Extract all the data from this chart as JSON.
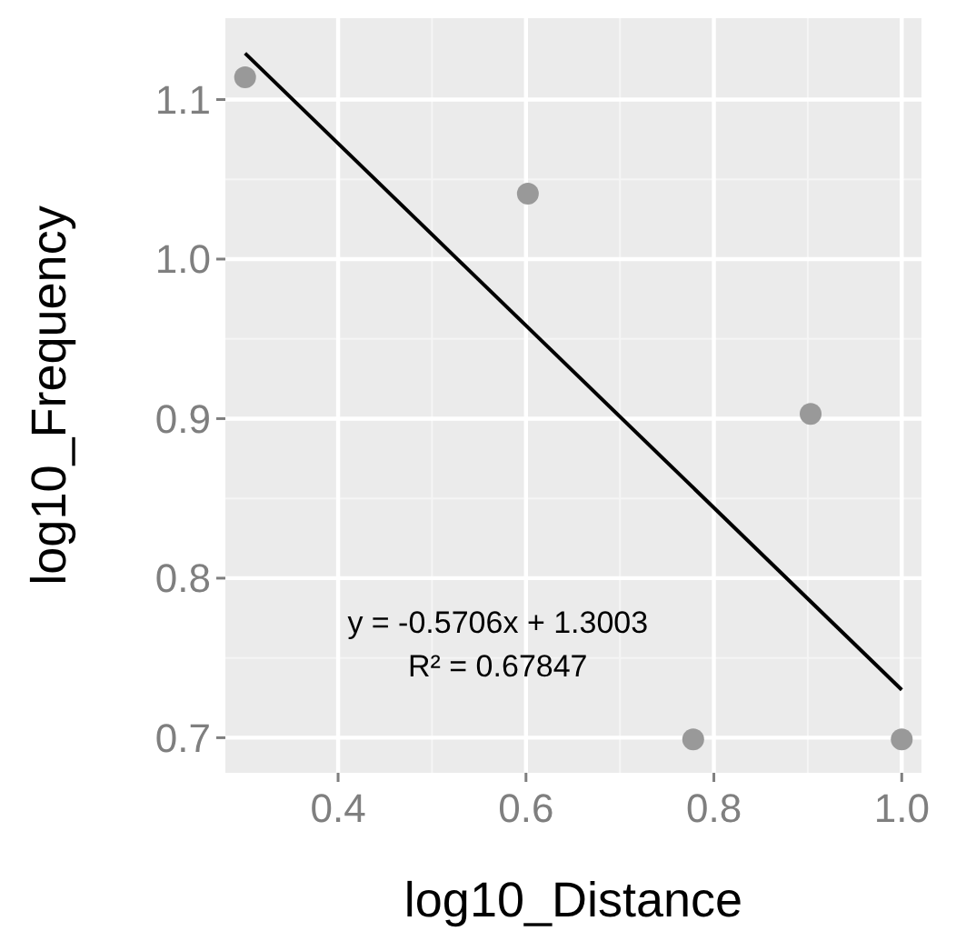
{
  "chart_data": {
    "type": "scatter",
    "xlabel": "log10_Distance",
    "ylabel": "log10_Frequency",
    "xlim": [
      0.28,
      1.021
    ],
    "ylim": [
      0.678,
      1.151
    ],
    "xticks": [
      0.4,
      0.6,
      0.8,
      {
        "value": 1,
        "label": "1.0"
      }
    ],
    "yticks": [
      0.7,
      0.8,
      0.9,
      {
        "value": 1,
        "label": "1.0"
      },
      1.1
    ],
    "grid": true,
    "marker": "circle",
    "series": [
      {
        "color": "#999999",
        "x": [
          0.301,
          0.602,
          0.778,
          0.903,
          1.0
        ],
        "values": [
          1.114,
          1.041,
          0.699,
          0.903,
          0.699
        ]
      },
      {
        "type": "line",
        "color": "#000000",
        "x": [
          0.301,
          1.0
        ],
        "values": [
          1.129,
          0.73
        ],
        "marker": "none",
        "line_style": "solid"
      }
    ],
    "annotations": [
      "y = -0.5706x + 1.3003",
      "R² = 0.67847"
    ]
  }
}
